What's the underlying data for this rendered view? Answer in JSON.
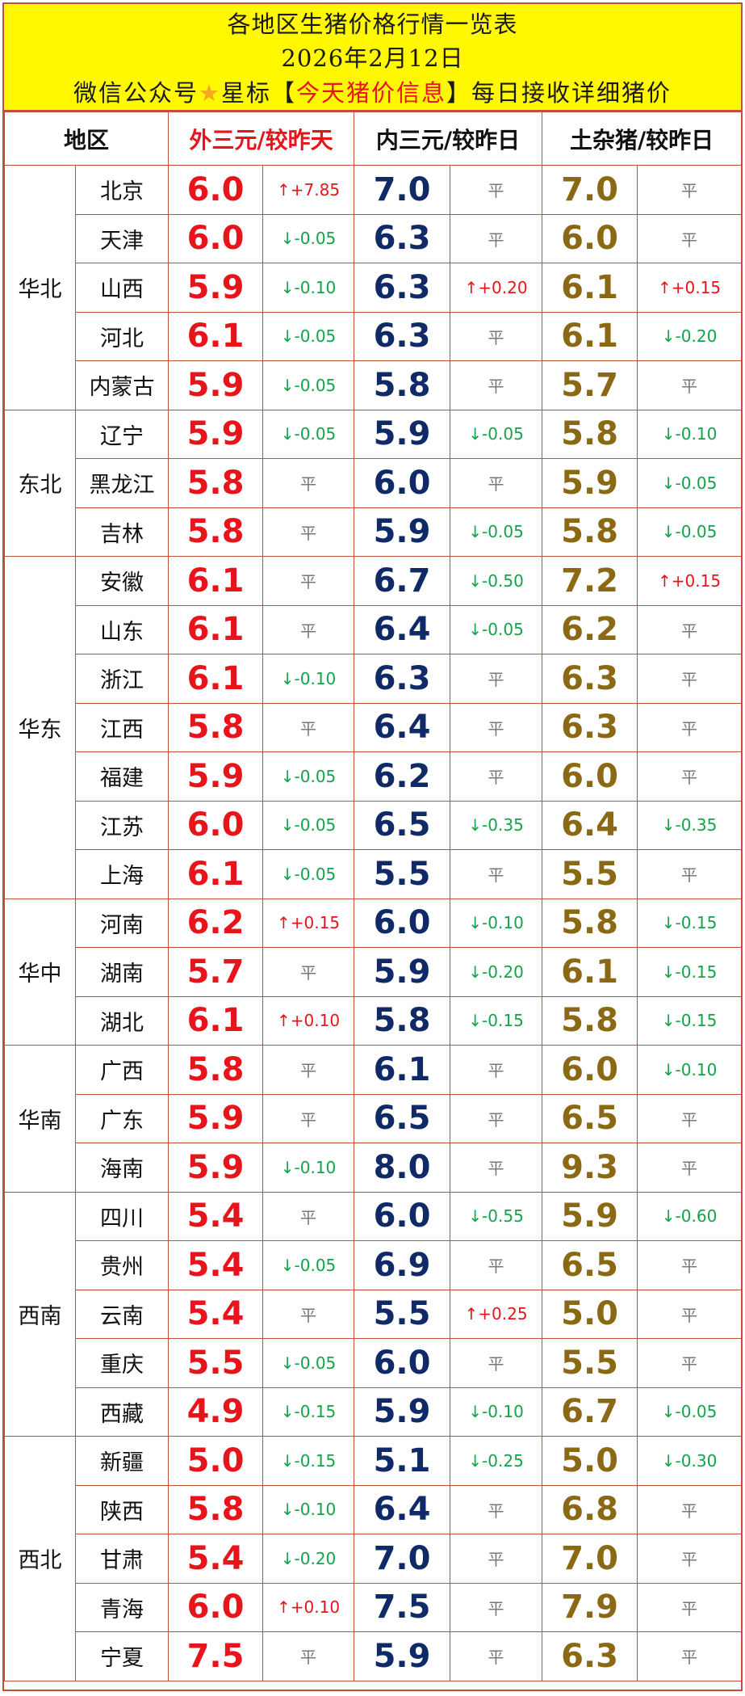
{
  "header": {
    "title": "各地区生猪价格行情一览表",
    "date": "2026年2月12日",
    "wechat_prefix": "微信公众号",
    "star_icon": "★",
    "star_label": "星标",
    "bracket_open": "【",
    "account_name": "今天猪价信息",
    "bracket_close": "】",
    "wechat_suffix": "每日接收详细猪价"
  },
  "columns": {
    "region": "地区",
    "out": "外三元/较昨天",
    "in": "内三元/较昨日",
    "tu": "土杂猪/较昨日"
  },
  "colors": {
    "border": "#c0503a",
    "header_bg": "#fff800",
    "out_price": "#e8141b",
    "in_price": "#0f2a66",
    "tu_price": "#8b6914",
    "up": "#e8141b",
    "down": "#13a34a"
  },
  "regions": [
    {
      "name": "华北",
      "rows": [
        {
          "province": "北京",
          "out": "6.0",
          "out_chg": "↑+7.85",
          "in": "7.0",
          "in_chg": "平",
          "tu": "7.0",
          "tu_chg": "平"
        },
        {
          "province": "天津",
          "out": "6.0",
          "out_chg": "↓-0.05",
          "in": "6.3",
          "in_chg": "平",
          "tu": "6.0",
          "tu_chg": "平"
        },
        {
          "province": "山西",
          "out": "5.9",
          "out_chg": "↓-0.10",
          "in": "6.3",
          "in_chg": "↑+0.20",
          "tu": "6.1",
          "tu_chg": "↑+0.15"
        },
        {
          "province": "河北",
          "out": "6.1",
          "out_chg": "↓-0.05",
          "in": "6.3",
          "in_chg": "平",
          "tu": "6.1",
          "tu_chg": "↓-0.20"
        },
        {
          "province": "内蒙古",
          "out": "5.9",
          "out_chg": "↓-0.05",
          "in": "5.8",
          "in_chg": "平",
          "tu": "5.7",
          "tu_chg": "平"
        }
      ]
    },
    {
      "name": "东北",
      "rows": [
        {
          "province": "辽宁",
          "out": "5.9",
          "out_chg": "↓-0.05",
          "in": "5.9",
          "in_chg": "↓-0.05",
          "tu": "5.8",
          "tu_chg": "↓-0.10"
        },
        {
          "province": "黑龙江",
          "out": "5.8",
          "out_chg": "平",
          "in": "6.0",
          "in_chg": "平",
          "tu": "5.9",
          "tu_chg": "↓-0.05"
        },
        {
          "province": "吉林",
          "out": "5.8",
          "out_chg": "平",
          "in": "5.9",
          "in_chg": "↓-0.05",
          "tu": "5.8",
          "tu_chg": "↓-0.05"
        }
      ]
    },
    {
      "name": "华东",
      "rows": [
        {
          "province": "安徽",
          "out": "6.1",
          "out_chg": "平",
          "in": "6.7",
          "in_chg": "↓-0.50",
          "tu": "7.2",
          "tu_chg": "↑+0.15"
        },
        {
          "province": "山东",
          "out": "6.1",
          "out_chg": "平",
          "in": "6.4",
          "in_chg": "↓-0.05",
          "tu": "6.2",
          "tu_chg": "平"
        },
        {
          "province": "浙江",
          "out": "6.1",
          "out_chg": "↓-0.10",
          "in": "6.3",
          "in_chg": "平",
          "tu": "6.3",
          "tu_chg": "平"
        },
        {
          "province": "江西",
          "out": "5.8",
          "out_chg": "平",
          "in": "6.4",
          "in_chg": "平",
          "tu": "6.3",
          "tu_chg": "平"
        },
        {
          "province": "福建",
          "out": "5.9",
          "out_chg": "↓-0.05",
          "in": "6.2",
          "in_chg": "平",
          "tu": "6.0",
          "tu_chg": "平"
        },
        {
          "province": "江苏",
          "out": "6.0",
          "out_chg": "↓-0.05",
          "in": "6.5",
          "in_chg": "↓-0.35",
          "tu": "6.4",
          "tu_chg": "↓-0.35"
        },
        {
          "province": "上海",
          "out": "6.1",
          "out_chg": "↓-0.05",
          "in": "5.5",
          "in_chg": "平",
          "tu": "5.5",
          "tu_chg": "平"
        }
      ]
    },
    {
      "name": "华中",
      "rows": [
        {
          "province": "河南",
          "out": "6.2",
          "out_chg": "↑+0.15",
          "in": "6.0",
          "in_chg": "↓-0.10",
          "tu": "5.8",
          "tu_chg": "↓-0.15"
        },
        {
          "province": "湖南",
          "out": "5.7",
          "out_chg": "平",
          "in": "5.9",
          "in_chg": "↓-0.20",
          "tu": "6.1",
          "tu_chg": "↓-0.15"
        },
        {
          "province": "湖北",
          "out": "6.1",
          "out_chg": "↑+0.10",
          "in": "5.8",
          "in_chg": "↓-0.15",
          "tu": "5.8",
          "tu_chg": "↓-0.15"
        }
      ]
    },
    {
      "name": "华南",
      "rows": [
        {
          "province": "广西",
          "out": "5.8",
          "out_chg": "平",
          "in": "6.1",
          "in_chg": "平",
          "tu": "6.0",
          "tu_chg": "↓-0.10"
        },
        {
          "province": "广东",
          "out": "5.9",
          "out_chg": "平",
          "in": "6.5",
          "in_chg": "平",
          "tu": "6.5",
          "tu_chg": "平"
        },
        {
          "province": "海南",
          "out": "5.9",
          "out_chg": "↓-0.10",
          "in": "8.0",
          "in_chg": "平",
          "tu": "9.3",
          "tu_chg": "平"
        }
      ]
    },
    {
      "name": "西南",
      "rows": [
        {
          "province": "四川",
          "out": "5.4",
          "out_chg": "平",
          "in": "6.0",
          "in_chg": "↓-0.55",
          "tu": "5.9",
          "tu_chg": "↓-0.60"
        },
        {
          "province": "贵州",
          "out": "5.4",
          "out_chg": "↓-0.05",
          "in": "6.9",
          "in_chg": "平",
          "tu": "6.5",
          "tu_chg": "平"
        },
        {
          "province": "云南",
          "out": "5.4",
          "out_chg": "平",
          "in": "5.5",
          "in_chg": "↑+0.25",
          "tu": "5.0",
          "tu_chg": "平"
        },
        {
          "province": "重庆",
          "out": "5.5",
          "out_chg": "↓-0.05",
          "in": "6.0",
          "in_chg": "平",
          "tu": "5.5",
          "tu_chg": "平"
        },
        {
          "province": "西藏",
          "out": "4.9",
          "out_chg": "↓-0.15",
          "in": "5.9",
          "in_chg": "↓-0.10",
          "tu": "6.7",
          "tu_chg": "↓-0.05"
        }
      ]
    },
    {
      "name": "西北",
      "rows": [
        {
          "province": "新疆",
          "out": "5.0",
          "out_chg": "↓-0.15",
          "in": "5.1",
          "in_chg": "↓-0.25",
          "tu": "5.0",
          "tu_chg": "↓-0.30"
        },
        {
          "province": "陕西",
          "out": "5.8",
          "out_chg": "↓-0.10",
          "in": "6.4",
          "in_chg": "平",
          "tu": "6.8",
          "tu_chg": "平"
        },
        {
          "province": "甘肃",
          "out": "5.4",
          "out_chg": "↓-0.20",
          "in": "7.0",
          "in_chg": "平",
          "tu": "7.0",
          "tu_chg": "平"
        },
        {
          "province": "青海",
          "out": "6.0",
          "out_chg": "↑+0.10",
          "in": "7.5",
          "in_chg": "平",
          "tu": "7.9",
          "tu_chg": "平"
        },
        {
          "province": "宁夏",
          "out": "7.5",
          "out_chg": "平",
          "in": "5.9",
          "in_chg": "平",
          "tu": "6.3",
          "tu_chg": "平"
        }
      ]
    }
  ]
}
